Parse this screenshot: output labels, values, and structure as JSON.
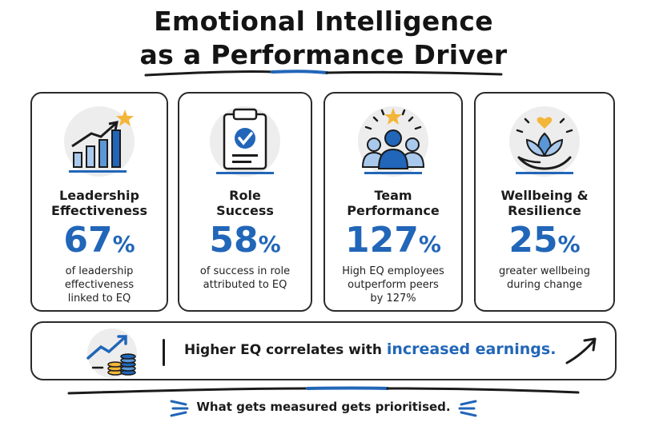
{
  "title": {
    "line1": "Emotional Intelligence",
    "line2": "as a Performance Driver"
  },
  "cards": [
    {
      "icon": "bar-chart-star-icon",
      "name_line1": "Leadership",
      "name_line2": "Effectiveness",
      "stat": "67",
      "unit": "%",
      "desc_line1": "of leadership",
      "desc_line2": "effectiveness",
      "desc_line3": "linked to EQ"
    },
    {
      "icon": "clipboard-check-icon",
      "name_line1": "Role",
      "name_line2": "Success",
      "stat": "58",
      "unit": "%",
      "desc_line1": "of success in role",
      "desc_line2": "attributed to EQ",
      "desc_line3": ""
    },
    {
      "icon": "team-star-icon",
      "name_line1": "Team",
      "name_line2": "Performance",
      "stat": "127",
      "unit": "%",
      "desc_line1": "High EQ employees",
      "desc_line2": "outperform peers",
      "desc_line3": "by 127%"
    },
    {
      "icon": "lotus-hand-heart-icon",
      "name_line1": "Wellbeing &",
      "name_line2": "Resilience",
      "stat": "25",
      "unit": "%",
      "desc_line1": "greater wellbeing",
      "desc_line2": "during change",
      "desc_line3": ""
    }
  ],
  "banner": {
    "icon": "coins-trend-icon",
    "text": "Higher EQ correlates with ",
    "highlight": "increased earnings."
  },
  "footer": "What gets measured gets prioritised.",
  "colors": {
    "accent": "#2166b8",
    "light_blue": "#a9c9ec",
    "gold": "#f4b63a",
    "icon_bg": "#ededed"
  }
}
